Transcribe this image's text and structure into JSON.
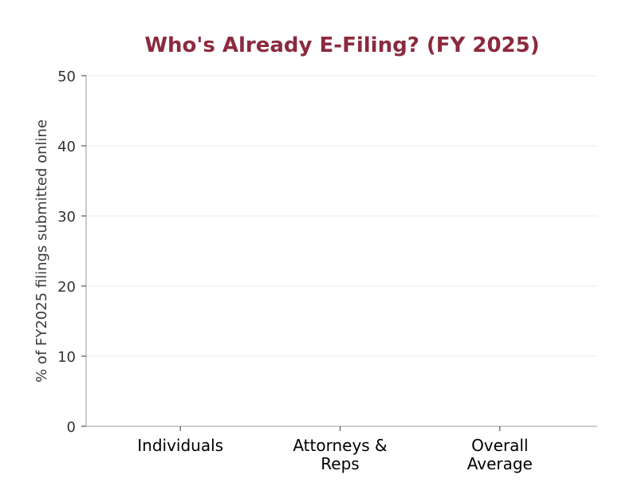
{
  "chart_data": {
    "type": "bar",
    "title": "Who's Already E-Filing? (FY 2025)",
    "xlabel": "",
    "ylabel": "% of FY2025 filings submitted online",
    "categories": [
      [
        "Individuals"
      ],
      [
        "Attorneys &",
        "Reps"
      ],
      [
        "Overall",
        "Average"
      ]
    ],
    "values": [
      null,
      null,
      null
    ],
    "ylim": [
      0,
      50
    ],
    "yticks": [
      0,
      10,
      20,
      30,
      40,
      50
    ],
    "grid": true,
    "colors": {
      "title": "#8b2a3e",
      "axis": "#b0b0b0",
      "grid": "#ebebeb",
      "tick_text": "#333333"
    }
  }
}
